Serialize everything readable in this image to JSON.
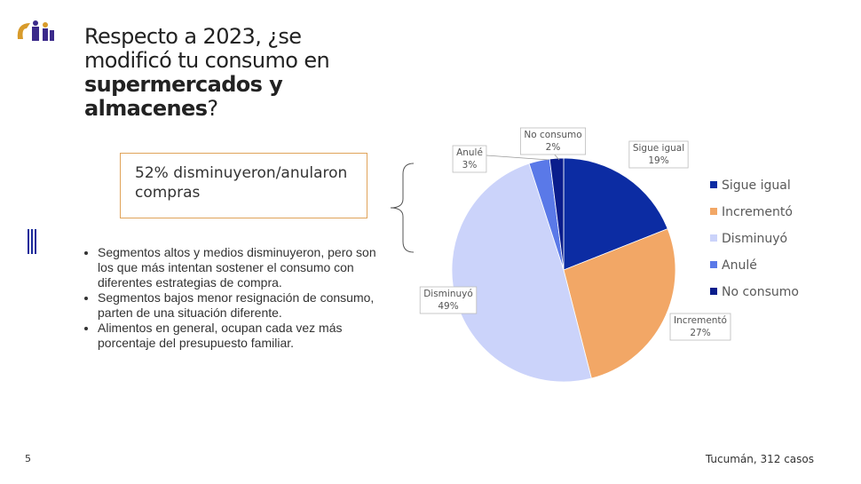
{
  "slide": {
    "title": {
      "prefix": "Respecto a 2023, ¿se modificó tu consumo en",
      "bold": "supermercados y almacenes",
      "suffix": "?"
    },
    "callout": "52% disminuyeron/anularon compras",
    "bullets": [
      "Segmentos altos y medios disminuyeron, pero son los que más intentan sostener el consumo con diferentes estrategias de compra.",
      "Segmentos bajos menor resignación de consumo, parten de una situación diferente.",
      "Alimentos en general, ocupan cada vez más porcentaje del presupuesto familiar."
    ],
    "page_number": "5",
    "footnote": "Tucumán, 312 casos"
  },
  "chart_data": {
    "type": "pie",
    "categories": [
      "Sigue igual",
      "Incrementó",
      "Disminuyó",
      "Anulé",
      "No consumo"
    ],
    "values": [
      19,
      27,
      49,
      3,
      2
    ],
    "value_labels": [
      "19%",
      "27%",
      "49%",
      "3%",
      "2%"
    ],
    "colors": [
      "#0c2ca3",
      "#f2a766",
      "#cbd3fa",
      "#5a79e8",
      "#0a1d8c"
    ],
    "legend": "right"
  }
}
